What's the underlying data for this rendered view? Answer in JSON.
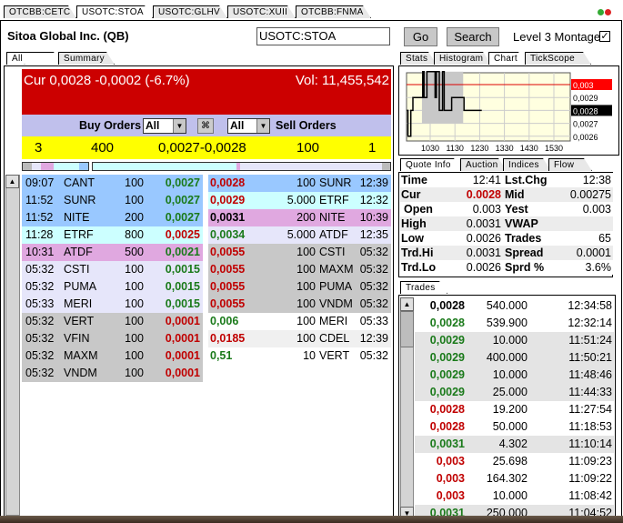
{
  "top_tabs": [
    {
      "label": "OTCBB:CETC"
    },
    {
      "label": "USOTC:STOA",
      "active": true
    },
    {
      "label": "USOTC:GLHV"
    },
    {
      "label": "USOTC:XUII"
    },
    {
      "label": "OTCBB:FNMA"
    }
  ],
  "header": {
    "company": "Sitoa Global Inc. (QB)",
    "symbol_value": "USOTC:STOA",
    "go_label": "Go",
    "search_label": "Search",
    "level3_label": "Level 3 Montage",
    "level3_checked": true
  },
  "left_tabs": [
    {
      "label": "All orders",
      "active": true
    },
    {
      "label": "Summary"
    }
  ],
  "banner": {
    "cur_text": "Cur 0,0028 -0,0002 (-6.7%)",
    "vol_text": "Vol: 11,455,542",
    "color": "#cc0000"
  },
  "filter": {
    "buy_label": "Buy Orders",
    "buy_select": "All",
    "sell_select": "All",
    "sell_label": "Sell Orders",
    "link_icon": "link-icon"
  },
  "summary": {
    "buy_count": "3",
    "buy_size": "400",
    "spread": "0,0027-0,0028",
    "sell_size": "100",
    "sell_count": "1"
  },
  "buy_orders": [
    {
      "time": "09:07",
      "mm": "CANT",
      "size": "100",
      "price": "0,0027",
      "pc": "g",
      "bg": "#99c8ff"
    },
    {
      "time": "11:52",
      "mm": "SUNR",
      "size": "100",
      "price": "0,0027",
      "pc": "g",
      "bg": "#99c8ff"
    },
    {
      "time": "11:52",
      "mm": "NITE",
      "size": "200",
      "price": "0,0027",
      "pc": "g",
      "bg": "#99c8ff"
    },
    {
      "time": "11:28",
      "mm": "ETRF",
      "size": "800",
      "price": "0,0025",
      "pc": "r",
      "bg": "#ccffff"
    },
    {
      "time": "10:31",
      "mm": "ATDF",
      "size": "500",
      "price": "0,0021",
      "pc": "g",
      "bg": "#e0a8e0"
    },
    {
      "time": "05:32",
      "mm": "CSTI",
      "size": "100",
      "price": "0,0015",
      "pc": "g",
      "bg": "#e6e6fa"
    },
    {
      "time": "05:32",
      "mm": "PUMA",
      "size": "100",
      "price": "0,0015",
      "pc": "g",
      "bg": "#e6e6fa"
    },
    {
      "time": "05:33",
      "mm": "MERI",
      "size": "100",
      "price": "0,0015",
      "pc": "g",
      "bg": "#e6e6fa"
    },
    {
      "time": "05:32",
      "mm": "VERT",
      "size": "100",
      "price": "0,0001",
      "pc": "r",
      "bg": "#c8c8c8"
    },
    {
      "time": "05:32",
      "mm": "VFIN",
      "size": "100",
      "price": "0,0001",
      "pc": "r",
      "bg": "#c8c8c8"
    },
    {
      "time": "05:32",
      "mm": "MAXM",
      "size": "100",
      "price": "0,0001",
      "pc": "r",
      "bg": "#c8c8c8"
    },
    {
      "time": "05:32",
      "mm": "VNDM",
      "size": "100",
      "price": "0,0001",
      "pc": "r",
      "bg": "#c8c8c8"
    }
  ],
  "sell_orders": [
    {
      "price": "0,0028",
      "pc": "r",
      "size": "100",
      "mm": "SUNR",
      "time": "12:39",
      "bg": "#99c8ff"
    },
    {
      "price": "0,0029",
      "pc": "r",
      "size": "5.000",
      "mm": "ETRF",
      "time": "12:32",
      "bg": "#ccffff"
    },
    {
      "price": "0,0031",
      "pc": "k",
      "size": "200",
      "mm": "NITE",
      "time": "10:39",
      "bg": "#e0a8e0"
    },
    {
      "price": "0,0034",
      "pc": "g",
      "size": "5.000",
      "mm": "ATDF",
      "time": "12:35",
      "bg": "#e6e6fa"
    },
    {
      "price": "0,0055",
      "pc": "r",
      "size": "100",
      "mm": "CSTI",
      "time": "05:32",
      "bg": "#c8c8c8"
    },
    {
      "price": "0,0055",
      "pc": "r",
      "size": "100",
      "mm": "MAXM",
      "time": "05:32",
      "bg": "#c8c8c8"
    },
    {
      "price": "0,0055",
      "pc": "r",
      "size": "100",
      "mm": "PUMA",
      "time": "05:32",
      "bg": "#c8c8c8"
    },
    {
      "price": "0,0055",
      "pc": "r",
      "size": "100",
      "mm": "VNDM",
      "time": "05:32",
      "bg": "#c8c8c8"
    },
    {
      "price": "0,006",
      "pc": "g",
      "size": "100",
      "mm": "MERI",
      "time": "05:33",
      "bg": "#ffffff"
    },
    {
      "price": "0,0185",
      "pc": "r",
      "size": "100",
      "mm": "CDEL",
      "time": "12:39",
      "bg": "#f0f0f0"
    },
    {
      "price": "0,51",
      "pc": "g",
      "size": "10",
      "mm": "VERT",
      "time": "05:32",
      "bg": "#ffffff"
    }
  ],
  "right_tabs": [
    {
      "label": "Stats"
    },
    {
      "label": "Histogram"
    },
    {
      "label": "Chart",
      "active": true
    },
    {
      "label": "TickScope"
    }
  ],
  "chart": {
    "x_ticks": [
      "1030",
      "1130",
      "1230",
      "1330",
      "1430",
      "1530"
    ],
    "y_ticks": [
      "0,003",
      "0,0029",
      "0,0028",
      "0,0027",
      "0,0026"
    ],
    "current_label": "0,0028",
    "reference_label": "0,003",
    "points": [
      [
        "09:33",
        0.0028
      ],
      [
        "09:36",
        0.0026
      ],
      [
        "09:41",
        0.0026
      ],
      [
        "09:43",
        0.0028
      ],
      [
        "09:48",
        0.0029
      ],
      [
        "10:10",
        0.0029
      ],
      [
        "10:12",
        0.0031
      ],
      [
        "10:15",
        0.0029
      ],
      [
        "10:22",
        0.0031
      ],
      [
        "10:40",
        0.0031
      ],
      [
        "10:42",
        0.0029
      ],
      [
        "10:45",
        0.0031
      ],
      [
        "10:50",
        0.0031
      ],
      [
        "10:52",
        0.0028
      ],
      [
        "11:00",
        0.0031
      ],
      [
        "11:04",
        0.0028
      ],
      [
        "11:20",
        0.0028
      ],
      [
        "11:22",
        0.0029
      ],
      [
        "11:50",
        0.0029
      ],
      [
        "11:52",
        0.0028
      ],
      [
        "12:35",
        0.0028
      ]
    ],
    "reference_price": 0.003
  },
  "quote_tabs": [
    {
      "label": "Quote Info",
      "active": true
    },
    {
      "label": "Auction"
    },
    {
      "label": "Indices"
    },
    {
      "label": "Flow"
    }
  ],
  "quote": [
    {
      "l1": "Time",
      "v1": "12:41",
      "l2": "Lst.Chg",
      "v2": "12:38"
    },
    {
      "l1": "Cur",
      "v1": "0.0028",
      "l2": "Mid",
      "v2": "0.00275",
      "red": true
    },
    {
      "l1": "Open",
      "v1": "0.003",
      "l2": "Yest",
      "v2": "0.003"
    },
    {
      "l1": "High",
      "v1": "0.0031",
      "l2": "VWAP",
      "v2": ""
    },
    {
      "l1": "Low",
      "v1": "0.0026",
      "l2": "Trades",
      "v2": "65"
    },
    {
      "l1": "Trd.Hi",
      "v1": "0.0031",
      "l2": "Spread",
      "v2": "0.0001"
    },
    {
      "l1": "Trd.Lo",
      "v1": "0.0026",
      "l2": "Sprd %",
      "v2": "3.6%"
    }
  ],
  "trades_tab": "Trades",
  "trades": [
    {
      "price": "0,0028",
      "pc": "k",
      "size": "540.000",
      "time": "12:34:58",
      "bg": "#ffffff"
    },
    {
      "price": "0,0028",
      "pc": "g",
      "size": "539.900",
      "time": "12:32:14",
      "bg": "#ffffff"
    },
    {
      "price": "0,0029",
      "pc": "g",
      "size": "10.000",
      "time": "11:51:24",
      "bg": "#e4e4e4"
    },
    {
      "price": "0,0029",
      "pc": "g",
      "size": "400.000",
      "time": "11:50:21",
      "bg": "#e4e4e4"
    },
    {
      "price": "0,0029",
      "pc": "g",
      "size": "10.000",
      "time": "11:48:46",
      "bg": "#e4e4e4"
    },
    {
      "price": "0,0029",
      "pc": "g",
      "size": "25.000",
      "time": "11:44:33",
      "bg": "#e4e4e4"
    },
    {
      "price": "0,0028",
      "pc": "r",
      "size": "19.200",
      "time": "11:27:54",
      "bg": "#ffffff"
    },
    {
      "price": "0,0028",
      "pc": "r",
      "size": "50.000",
      "time": "11:18:53",
      "bg": "#ffffff"
    },
    {
      "price": "0,0031",
      "pc": "g",
      "size": "4.302",
      "time": "11:10:14",
      "bg": "#e4e4e4"
    },
    {
      "price": "0,003",
      "pc": "r",
      "size": "25.698",
      "time": "11:09:23",
      "bg": "#ffffff"
    },
    {
      "price": "0,003",
      "pc": "r",
      "size": "164.302",
      "time": "11:09:22",
      "bg": "#ffffff"
    },
    {
      "price": "0,003",
      "pc": "r",
      "size": "10.000",
      "time": "11:08:42",
      "bg": "#ffffff"
    },
    {
      "price": "0,0031",
      "pc": "g",
      "size": "250.000",
      "time": "11:04:52",
      "bg": "#e4e4e4"
    }
  ]
}
